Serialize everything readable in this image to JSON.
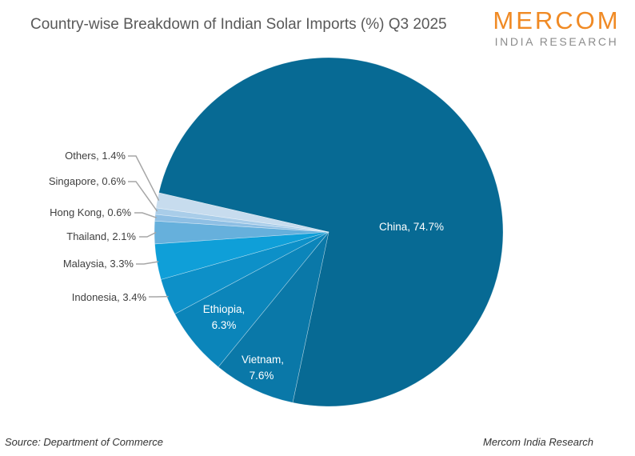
{
  "title": "Country-wise Breakdown of Indian Solar Imports (%) Q3 2025",
  "logo": {
    "main": "MERCOM",
    "sub": "INDIA RESEARCH",
    "color": "#f08a24"
  },
  "footer": {
    "source": "Source: Department of Commerce",
    "credit": "Mercom India Research"
  },
  "chart_data": {
    "type": "pie",
    "title": "Country-wise Breakdown of Indian Solar Imports (%) Q3 2025",
    "categories": [
      "China",
      "Vietnam",
      "Ethiopia",
      "Indonesia",
      "Malaysia",
      "Thailand",
      "Hong Kong",
      "Singapore",
      "Others"
    ],
    "values": [
      74.7,
      7.6,
      6.3,
      3.4,
      3.3,
      2.1,
      0.6,
      0.6,
      1.4
    ],
    "labels": [
      "China, 74.7%",
      "Vietnam, 7.6%",
      "Ethiopia, 6.3%",
      "Indonesia, 3.4%",
      "Malaysia, 3.3%",
      "Thailand, 2.1%",
      "Hong Kong, 0.6%",
      "Singapore, 0.6%",
      "Others, 1.4%"
    ],
    "colors": [
      "#076a94",
      "#0a78a8",
      "#0b85ba",
      "#0d90c8",
      "#0f9fd8",
      "#66b0dc",
      "#8ebfe4",
      "#a9cde9",
      "#c7dcee"
    ],
    "legend": "none"
  }
}
